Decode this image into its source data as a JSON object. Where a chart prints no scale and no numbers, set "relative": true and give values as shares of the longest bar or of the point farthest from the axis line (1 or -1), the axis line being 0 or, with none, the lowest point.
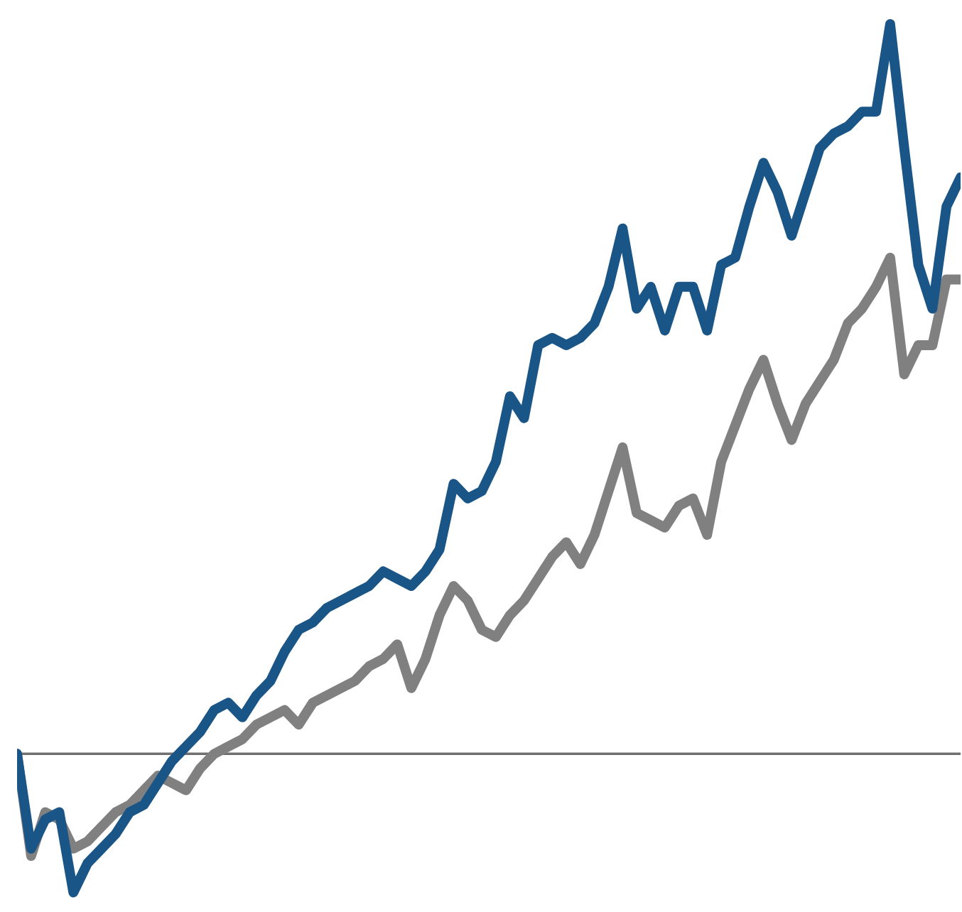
{
  "chart_data": {
    "type": "line",
    "relative": true,
    "legend": false,
    "marker": "none",
    "line_style": "solid",
    "categories": [
      null,
      null,
      null,
      null,
      null,
      null,
      null,
      null,
      null,
      null,
      null,
      null,
      null,
      null,
      null,
      null,
      null,
      null,
      null,
      null,
      null,
      null,
      null,
      null,
      null,
      null,
      null,
      null,
      null,
      null,
      null,
      null,
      null,
      null,
      null,
      null,
      null,
      null,
      null,
      null,
      null,
      null,
      null,
      null,
      null,
      null,
      null,
      null,
      null,
      null,
      null,
      null,
      null,
      null,
      null,
      null,
      null,
      null,
      null,
      null,
      null,
      null,
      null,
      null,
      null,
      null,
      null,
      null
    ],
    "series": [
      {
        "color": "#1a5587",
        "values": [
          0,
          -0.13,
          -0.09,
          -0.08,
          -0.19,
          -0.15,
          -0.13,
          -0.11,
          -0.08,
          -0.07,
          -0.04,
          -0.01,
          0.01,
          0.03,
          0.06,
          0.07,
          0.05,
          0.08,
          0.1,
          0.14,
          0.17,
          0.18,
          0.2,
          0.21,
          0.22,
          0.23,
          0.25,
          0.24,
          0.23,
          0.25,
          0.28,
          0.37,
          0.35,
          0.36,
          0.4,
          0.49,
          0.46,
          0.56,
          0.57,
          0.56,
          0.57,
          0.59,
          0.64,
          0.72,
          0.61,
          0.64,
          0.58,
          0.64,
          0.64,
          0.58,
          0.67,
          0.68,
          0.75,
          0.81,
          0.77,
          0.71,
          0.77,
          0.83,
          0.85,
          0.86,
          0.88,
          0.88,
          1.0,
          0.83,
          0.67,
          0.61,
          0.75,
          0.79
        ]
      },
      {
        "color": "#808080",
        "values": [
          0,
          -0.14,
          -0.08,
          -0.09,
          -0.13,
          -0.12,
          -0.1,
          -0.08,
          -0.07,
          -0.05,
          -0.03,
          -0.04,
          -0.05,
          -0.02,
          0.0,
          0.01,
          0.02,
          0.04,
          0.05,
          0.06,
          0.04,
          0.07,
          0.08,
          0.09,
          0.1,
          0.12,
          0.13,
          0.15,
          0.09,
          0.13,
          0.19,
          0.23,
          0.21,
          0.17,
          0.16,
          0.19,
          0.21,
          0.24,
          0.27,
          0.29,
          0.26,
          0.3,
          0.36,
          0.42,
          0.33,
          0.32,
          0.31,
          0.34,
          0.35,
          0.3,
          0.4,
          0.45,
          0.5,
          0.54,
          0.48,
          0.43,
          0.48,
          0.51,
          0.54,
          0.59,
          0.61,
          0.64,
          0.68,
          0.52,
          0.56,
          0.56,
          0.65,
          0.65
        ]
      }
    ]
  }
}
